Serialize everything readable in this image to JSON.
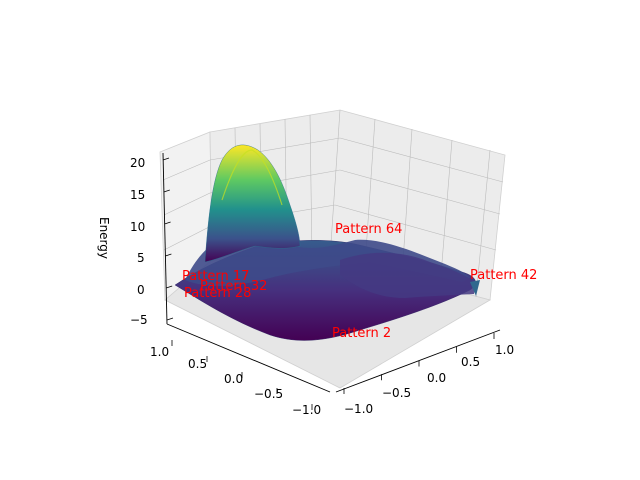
{
  "chart_data": {
    "type": "surface3d",
    "title": "",
    "xlabel": "",
    "ylabel": "",
    "zlabel": "Energy",
    "xlim": [
      -1.0,
      1.0
    ],
    "ylim": [
      -1.0,
      1.0
    ],
    "zlim": [
      -5,
      21
    ],
    "x_ticks": [
      "1.0",
      "0.5",
      "0.0",
      "−0.5",
      "−1.0"
    ],
    "y_ticks": [
      "−1.0",
      "−0.5",
      "0.0",
      "0.5",
      "1.0"
    ],
    "z_ticks": [
      "−5",
      "0",
      "5",
      "10",
      "15",
      "20"
    ],
    "colormap": "viridis",
    "grid": true,
    "surface_summary": {
      "peak_energy": 21,
      "min_energy": -5,
      "peak_region": "near x = 1.0, y = -1.0 (back-left corner)",
      "valley_region": "center-left basin"
    },
    "annotations": [
      {
        "text": "Pattern 64",
        "color": "#ff0000"
      },
      {
        "text": "Pattern 42",
        "color": "#ff0000"
      },
      {
        "text": "Pattern 17",
        "color": "#ff0000"
      },
      {
        "text": "Pattern 32",
        "color": "#ff0000"
      },
      {
        "text": "Pattern 28",
        "color": "#ff0000"
      },
      {
        "text": "Pattern 2",
        "color": "#ff0000"
      }
    ]
  }
}
